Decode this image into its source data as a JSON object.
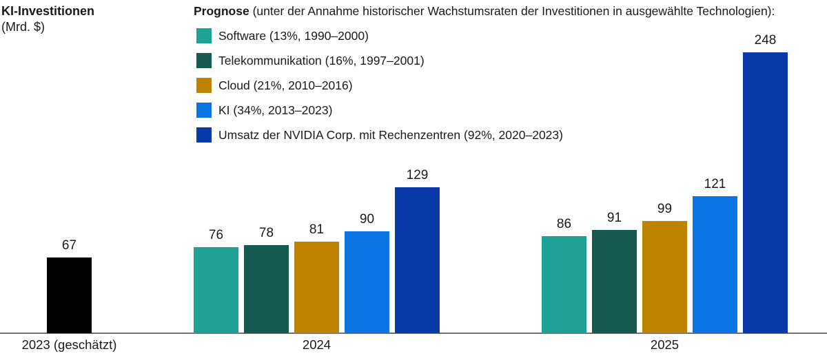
{
  "chart": {
    "title": "KI-Investitionen",
    "unit": "(Mrd. $)",
    "legend_title_bold": "Prognose",
    "legend_title_rest": " (unter der Annahme historischer Wachstumsraten der Investitionen in ausgewählte Technologien):"
  },
  "chart_data": {
    "type": "bar",
    "title": "KI-Investitionen (Mrd. $)",
    "ylabel": "Mrd. $",
    "xlabel": "",
    "grid": false,
    "legend_position": "top",
    "value_labels_shown": true,
    "ylim": [
      0,
      260
    ],
    "categories": [
      "2023 (geschätzt)",
      "2024",
      "2025"
    ],
    "series": [
      {
        "id": "estimate-2023",
        "label": null,
        "color": "#000000",
        "values": [
          67,
          null,
          null
        ]
      },
      {
        "id": "software",
        "label": "Software (13%, 1990–2000)",
        "color": "#1FA296",
        "values": [
          null,
          76,
          86
        ]
      },
      {
        "id": "telekommunikation",
        "label": "Telekommunikation (16%, 1997–2001)",
        "color": "#16594F",
        "values": [
          null,
          78,
          91
        ]
      },
      {
        "id": "cloud",
        "label": "Cloud (21%, 2010–2016)",
        "color": "#C08300",
        "values": [
          null,
          81,
          99
        ]
      },
      {
        "id": "ki",
        "label": "KI (34%, 2013–2023)",
        "color": "#0B76E3",
        "values": [
          null,
          90,
          121
        ]
      },
      {
        "id": "nvidia-rechenzentren",
        "label": "Umsatz der NVIDIA Corp. mit Rechenzentren (92%, 2020–2023)",
        "color": "#0839A6",
        "values": [
          null,
          129,
          248
        ]
      }
    ]
  }
}
